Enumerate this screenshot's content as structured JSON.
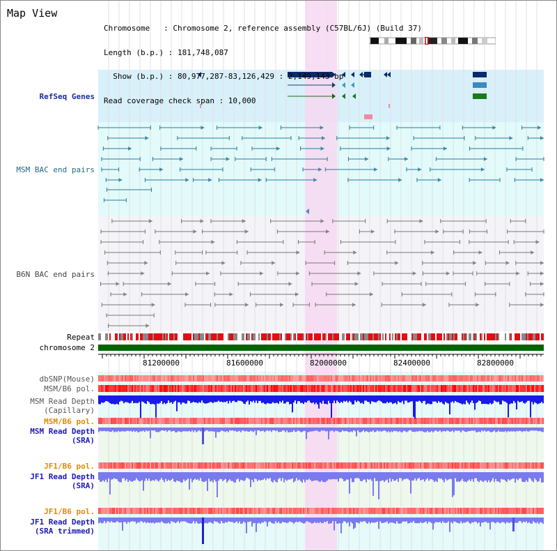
{
  "view_title": "Map View",
  "header": {
    "line1": "Chromosome   : Chromosome 2, reference assembly (C57BL/6J) (Build 37)",
    "line2": "Length (b.p.) : 181,748,087",
    "line3": "  Show (b.p.) : 80,977,287-83,126,429 : 2,149,143 bp",
    "line4": "Read coverage check span : 10,000"
  },
  "tracks": {
    "refseq": "RefSeq Genes",
    "msm_bac": "MSM BAC end pairs",
    "b6n_bac": "B6N BAC end pairs",
    "repeat": "Repeat",
    "chromosome": "chromosome 2",
    "dbsnp": "dbSNP(Mouse)",
    "msm_b6_pol": "MSM/B6 pol.",
    "msm_depth_cap_1": "MSM Read Depth",
    "msm_depth_cap_2": "(Capillary)",
    "msm_b6_pol_2": "MSM/B6 pol.",
    "msm_depth_sra_1": "MSM Read Depth",
    "msm_depth_sra_2": "(SRA)",
    "jf1_b6_pol": "JF1/B6 pol.",
    "jf1_depth_sra_1": "JF1 Read Depth",
    "jf1_depth_sra_2": "(SRA)",
    "jf1_b6_pol_2": "JF1/B6 pol.",
    "jf1_depth_trim_1": "JF1 Read Depth",
    "jf1_depth_trim_2": "(SRA trimmed)"
  },
  "axis_ticks": [
    "81200000",
    "81600000",
    "82000000",
    "82400000",
    "82800000"
  ],
  "colors": {
    "refseq_bg": "#d8f0fa",
    "msm_bg": "#e2fafa",
    "b6n_bg": "#f4f4f8",
    "highlight": "#f7d8f2",
    "repeat_red": "#e01010",
    "repeat_gray": "#888888",
    "chrom_green": "#006400",
    "depth_blue": "#1a1ae6",
    "depth_lightblue": "#7a7aee"
  }
}
